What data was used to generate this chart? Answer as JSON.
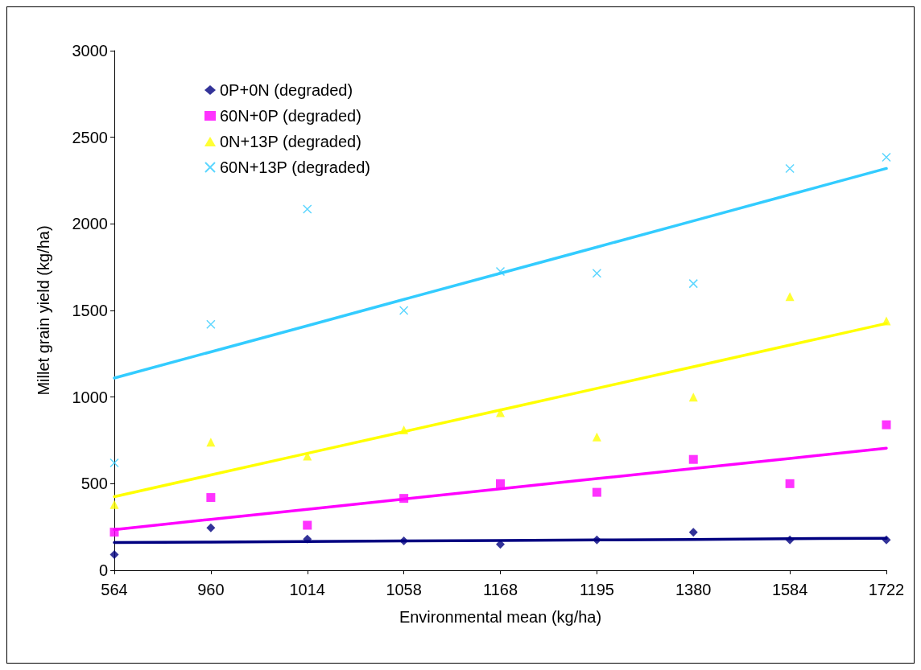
{
  "chart_data": {
    "type": "scatter",
    "xlabel": "Environmental mean (kg/ha)",
    "ylabel": "Millet grain yield (kg/ha)",
    "categories": [
      "564",
      "960",
      "1014",
      "1058",
      "1168",
      "1195",
      "1380",
      "1584",
      "1722"
    ],
    "ylim": [
      0,
      3000
    ],
    "yticks": [
      0,
      500,
      1000,
      1500,
      2000,
      2500,
      3000
    ],
    "grid": false,
    "legend": "top left",
    "series": [
      {
        "name": "0P+0N (degraded)",
        "color": "#000080",
        "marker": "diamond",
        "values": [
          90,
          245,
          180,
          170,
          150,
          175,
          220,
          175,
          175
        ]
      },
      {
        "name": "60N+0P (degraded)",
        "color": "#ff00ff",
        "marker": "square",
        "values": [
          220,
          420,
          260,
          415,
          500,
          450,
          640,
          500,
          840
        ]
      },
      {
        "name": "0N+13P (degraded)",
        "color": "#ffff00",
        "marker": "triangle",
        "values": [
          380,
          740,
          660,
          810,
          910,
          770,
          1000,
          1580,
          1440
        ]
      },
      {
        "name": "60N+13P (degraded)",
        "color": "#33ccff",
        "marker": "cross",
        "values": [
          620,
          1420,
          2085,
          1500,
          1725,
          1715,
          1655,
          2320,
          2385
        ]
      },
      {
        "type": "line",
        "color": "#000080",
        "marker": "none",
        "values": [
          160,
          163,
          166,
          169,
          172,
          175,
          178,
          182,
          185
        ]
      },
      {
        "type": "line",
        "color": "#ff00ff",
        "marker": "none",
        "values": [
          235,
          294,
          352,
          411,
          470,
          529,
          587,
          646,
          705
        ]
      },
      {
        "type": "line",
        "color": "#ffff00",
        "marker": "none",
        "values": [
          425,
          550,
          675,
          800,
          925,
          1050,
          1175,
          1300,
          1425
        ]
      },
      {
        "type": "line",
        "color": "#33ccff",
        "marker": "none",
        "values": [
          1110,
          1261,
          1412,
          1564,
          1715,
          1866,
          2017,
          2169,
          2320
        ]
      }
    ]
  }
}
